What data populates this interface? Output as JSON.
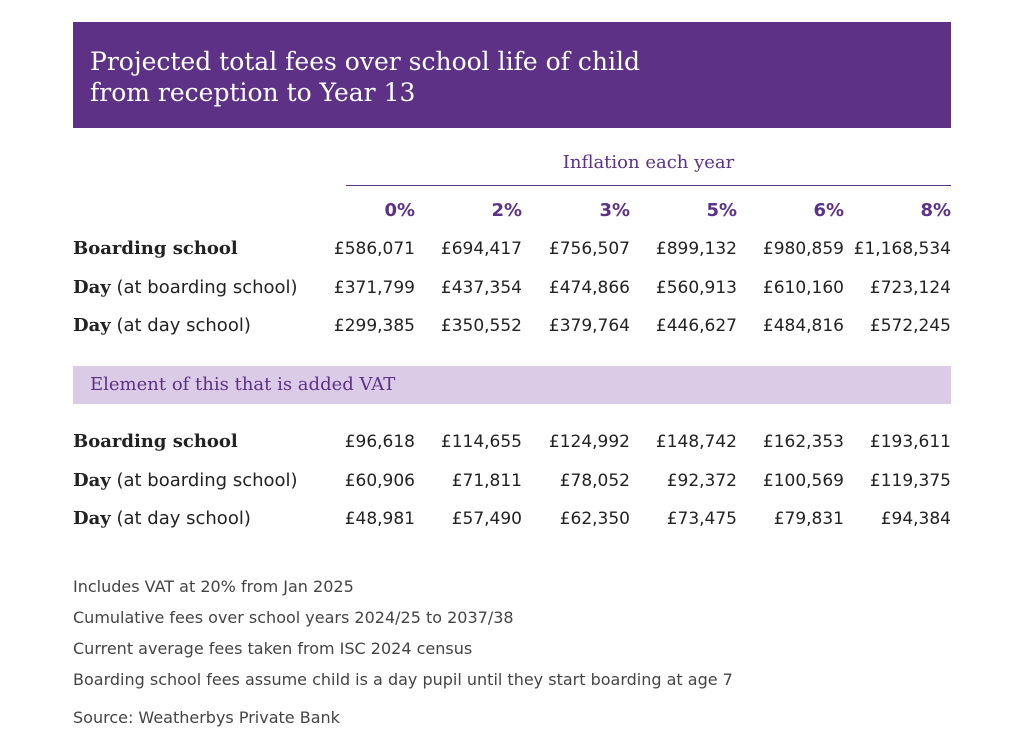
{
  "title_lines": [
    "Projected total fees over school life of child",
    "from reception to Year 13"
  ],
  "inflation_label": "Inflation each year",
  "vat_band_label": "Element of this that is added VAT",
  "notes": [
    "Includes VAT at 20% from Jan 2025",
    "Cumulative fees over school years 2024/25 to 2037/38",
    "Current average fees taken from ISC 2024 census",
    "Boarding school fees assume child is a day pupil until they start boarding at age 7"
  ],
  "source": "Source: Weatherbys Private Bank",
  "chart_data": {
    "type": "table",
    "title": "Projected total fees over school life of child from reception to Year 13",
    "column_group_label": "Inflation each year",
    "columns": [
      "0%",
      "2%",
      "3%",
      "5%",
      "6%",
      "8%"
    ],
    "sections": [
      {
        "label": "",
        "rows": [
          {
            "label_bold": "Boarding school",
            "label_rest": "",
            "values": [
              "£586,071",
              "£694,417",
              "£756,507",
              "£899,132",
              "£980,859",
              "£1,168,534"
            ]
          },
          {
            "label_bold": "Day",
            "label_rest": " (at boarding school)",
            "values": [
              "£371,799",
              "£437,354",
              "£474,866",
              "£560,913",
              "£610,160",
              "£723,124"
            ]
          },
          {
            "label_bold": "Day",
            "label_rest": " (at day school)",
            "values": [
              "£299,385",
              "£350,552",
              "£379,764",
              "£446,627",
              "£484,816",
              "£572,245"
            ]
          }
        ]
      },
      {
        "label": "Element of this that is added VAT",
        "rows": [
          {
            "label_bold": "Boarding school",
            "label_rest": "",
            "values": [
              "£96,618",
              "£114,655",
              "£124,992",
              "£148,742",
              "£162,353",
              "£193,611"
            ]
          },
          {
            "label_bold": "Day",
            "label_rest": " (at boarding school)",
            "values": [
              "£60,906",
              "£71,811",
              "£78,052",
              "£92,372",
              "£100,569",
              "£119,375"
            ]
          },
          {
            "label_bold": "Day",
            "label_rest": " (at day school)",
            "values": [
              "£48,981",
              "£57,490",
              "£62,350",
              "£73,475",
              "£79,831",
              "£94,384"
            ]
          }
        ]
      }
    ]
  },
  "colors": {
    "brand_purple": "#5c3186",
    "band_lavender": "#dccbe6",
    "text": "#222222"
  }
}
